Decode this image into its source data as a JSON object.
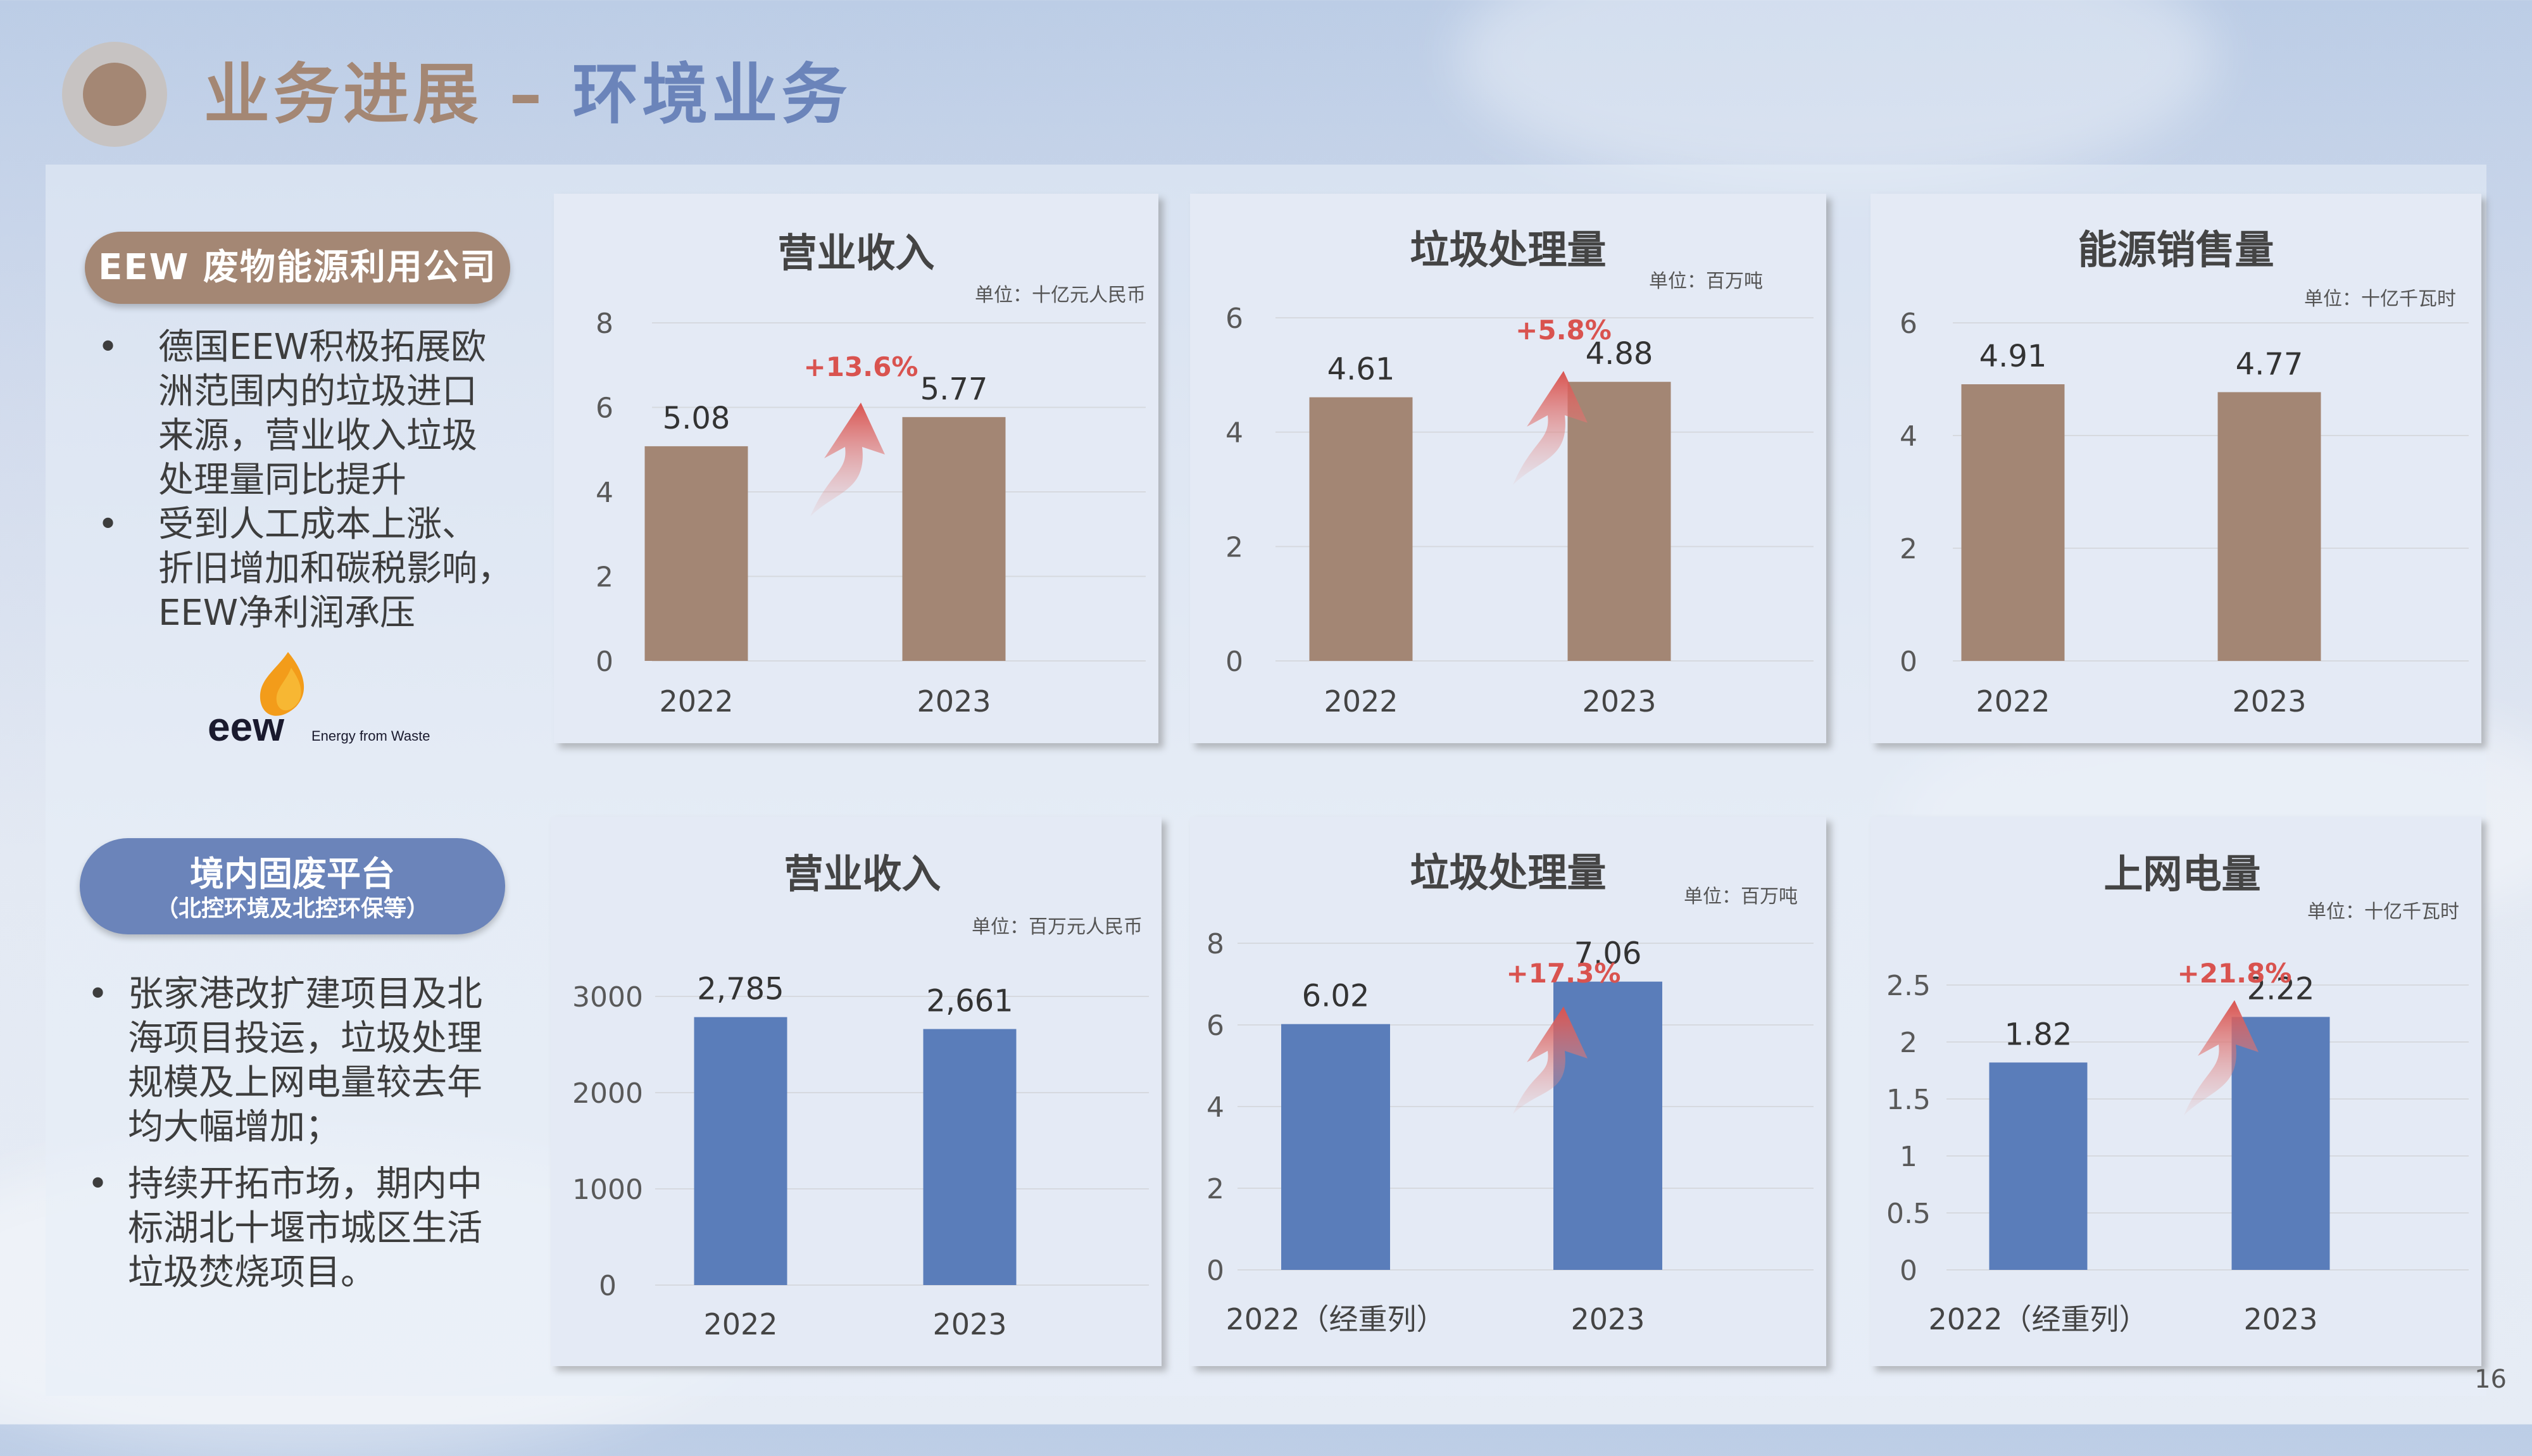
{
  "title": {
    "left": "业务进展 –",
    "right": " 环境业务"
  },
  "eew": {
    "label": "EEW 废物能源利用公司",
    "bullets": [
      "德国EEW积极拓展欧\n洲范围内的垃圾进口\n来源，营业收入垃圾\n处理量同比提升",
      "受到人工成本上涨、\n折旧增加和碳税影响，\nEEW净利润承压"
    ],
    "logo": {
      "word": "eew",
      "tagline": "Energy from Waste"
    }
  },
  "domestic": {
    "label": "境内固废平台",
    "sublabel": "（北控环境及北控环保等）",
    "bullets": [
      "张家港改扩建项目及北\n海项目投运，垃圾处理\n规模及上网电量较去年\n均大幅增加；",
      "持续开拓市场，期内中\n标湖北十堰市城区生活\n垃圾焚烧项目。"
    ]
  },
  "colors": {
    "brown": "#a48774",
    "blue": "#6b84ba",
    "bar_brown": "#a38674",
    "bar_blue": "#5a7dba",
    "growth": "#d9534f"
  },
  "page_number": "16",
  "chart_data": [
    {
      "type": "bar",
      "title": "营业收入",
      "unit": "单位：十亿元人民币",
      "categories": [
        "2022",
        "2023"
      ],
      "values": [
        5.08,
        5.77
      ],
      "value_labels": [
        "5.08",
        "5.77"
      ],
      "ylim": [
        0,
        8
      ],
      "yticks": [
        "0",
        "2",
        "4",
        "6",
        "8"
      ],
      "growth": "+13.6%",
      "color": "brown"
    },
    {
      "type": "bar",
      "title": "垃圾处理量",
      "unit": "单位：百万吨",
      "categories": [
        "2022",
        "2023"
      ],
      "values": [
        4.61,
        4.88
      ],
      "value_labels": [
        "4.61",
        "4.88"
      ],
      "ylim": [
        0,
        6
      ],
      "yticks": [
        "0",
        "2",
        "4",
        "6"
      ],
      "growth": "+5.8%",
      "color": "brown"
    },
    {
      "type": "bar",
      "title": "能源销售量",
      "unit": "单位：十亿千瓦时",
      "categories": [
        "2022",
        "2023"
      ],
      "values": [
        4.91,
        4.77
      ],
      "value_labels": [
        "4.91",
        "4.77"
      ],
      "ylim": [
        0,
        6
      ],
      "yticks": [
        "0",
        "2",
        "4",
        "6"
      ],
      "growth": "",
      "color": "brown"
    },
    {
      "type": "bar",
      "title": "营业收入",
      "unit": "单位：百万元人民币",
      "categories": [
        "2022",
        "2023"
      ],
      "values": [
        2785,
        2661
      ],
      "value_labels": [
        "2,785",
        "2,661"
      ],
      "ylim": [
        0,
        3000
      ],
      "yticks": [
        "0",
        "1000",
        "2000",
        "3000"
      ],
      "growth": "",
      "color": "blue"
    },
    {
      "type": "bar",
      "title": "垃圾处理量",
      "unit": "单位：百万吨",
      "categories": [
        "2022（经重列）",
        "2023"
      ],
      "values": [
        6.02,
        7.06
      ],
      "value_labels": [
        "6.02",
        "7.06"
      ],
      "ylim": [
        0,
        8
      ],
      "yticks": [
        "0",
        "2",
        "4",
        "6",
        "8"
      ],
      "growth": "+17.3%",
      "color": "blue"
    },
    {
      "type": "bar",
      "title": "上网电量",
      "unit": "单位：十亿千瓦时",
      "categories": [
        "2022（经重列）",
        "2023"
      ],
      "values": [
        1.82,
        2.22
      ],
      "value_labels": [
        "1.82",
        "2.22"
      ],
      "ylim": [
        0,
        2.5
      ],
      "yticks": [
        "0",
        "0.5",
        "1",
        "1.5",
        "2",
        "2.5"
      ],
      "growth": "+21.8%",
      "color": "blue"
    }
  ]
}
